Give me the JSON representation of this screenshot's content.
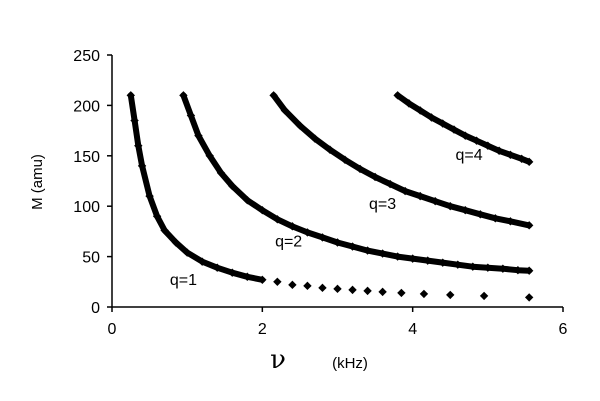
{
  "chart_data": {
    "type": "scatter",
    "ylabel": "M  (amu)",
    "xlabel_symbol": "ν",
    "xlabel_unit": "(kHz)",
    "xlim": [
      0,
      6
    ],
    "ylim": [
      0,
      250
    ],
    "xticks": [
      "0",
      "2",
      "4",
      "6"
    ],
    "yticks": [
      "0",
      "50",
      "100",
      "150",
      "200",
      "250"
    ],
    "grid": false,
    "legend": "none",
    "marker": "diamond",
    "color": "#000000",
    "series": [
      {
        "name": "q=1",
        "x": [
          0.25,
          0.3,
          0.35,
          0.4,
          0.5,
          0.6,
          0.7,
          0.85,
          1.0,
          1.2,
          1.4,
          1.6,
          1.8,
          2.0,
          2.2,
          2.4,
          2.6,
          2.8,
          3.0,
          3.2,
          3.4,
          3.6,
          3.85,
          4.15,
          4.5,
          4.95,
          5.55
        ],
        "y": [
          210,
          185,
          160,
          140,
          110,
          90,
          76,
          64,
          54,
          45,
          39,
          34,
          30,
          27,
          25,
          22,
          21,
          19,
          18,
          17,
          16,
          15,
          14,
          13,
          12,
          11,
          9.5
        ]
      },
      {
        "name": "q=2",
        "x": [
          0.95,
          1.05,
          1.15,
          1.3,
          1.45,
          1.6,
          1.8,
          2.0,
          2.2,
          2.4,
          2.6,
          2.8,
          3.0,
          3.2,
          3.4,
          3.6,
          3.8,
          4.0,
          4.2,
          4.4,
          4.6,
          4.8,
          5.0,
          5.2,
          5.4,
          5.55
        ],
        "y": [
          210,
          190,
          170,
          150,
          133,
          120,
          106,
          96,
          87,
          80,
          74,
          69,
          64,
          60,
          56,
          53,
          50,
          48,
          46,
          44,
          42,
          40,
          39,
          38,
          36.5,
          36
        ]
      },
      {
        "name": "q=3",
        "x": [
          2.15,
          2.3,
          2.5,
          2.7,
          2.9,
          3.1,
          3.3,
          3.5,
          3.7,
          3.9,
          4.1,
          4.3,
          4.5,
          4.7,
          4.9,
          5.1,
          5.3,
          5.55
        ],
        "y": [
          210,
          195,
          180,
          167,
          156,
          146,
          137,
          129,
          122,
          115,
          110,
          105,
          100,
          96,
          92,
          88,
          85,
          81
        ]
      },
      {
        "name": "q=4",
        "x": [
          3.8,
          3.95,
          4.1,
          4.25,
          4.4,
          4.55,
          4.7,
          4.85,
          5.0,
          5.15,
          5.3,
          5.45,
          5.55
        ],
        "y": [
          210,
          202,
          195,
          188,
          182,
          176,
          170,
          165,
          160,
          155,
          151,
          147,
          144
        ]
      }
    ],
    "annotations": [
      {
        "text": "q=1",
        "x": 0.95,
        "y": 22
      },
      {
        "text": "q=2",
        "x": 2.35,
        "y": 60
      },
      {
        "text": "q=3",
        "x": 3.6,
        "y": 97
      },
      {
        "text": "q=4",
        "x": 4.75,
        "y": 146
      }
    ]
  }
}
